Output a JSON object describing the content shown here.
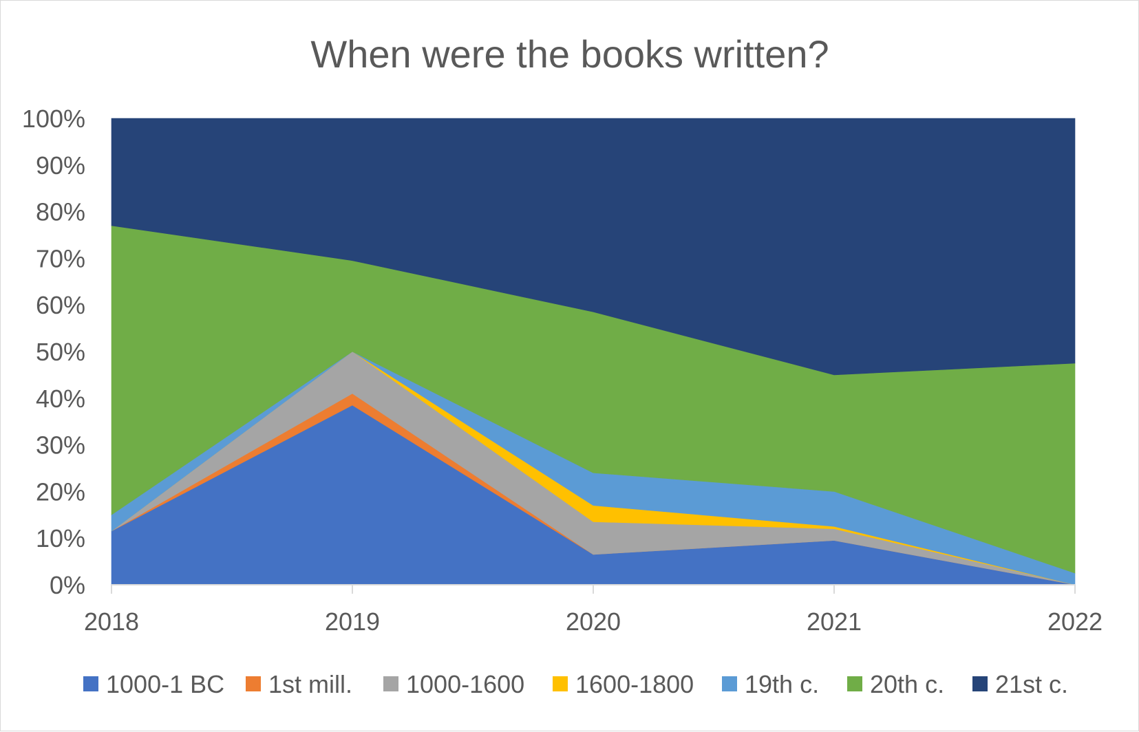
{
  "chart_data": {
    "type": "area",
    "stacked": "percent",
    "title": "When were the books written?",
    "xlabel": "",
    "ylabel": "",
    "categories": [
      "2018",
      "2019",
      "2020",
      "2021",
      "2022"
    ],
    "ylim": [
      0,
      100
    ],
    "y_ticks": [
      "0%",
      "10%",
      "20%",
      "30%",
      "40%",
      "50%",
      "60%",
      "70%",
      "80%",
      "90%",
      "100%"
    ],
    "grid": false,
    "legend_position": "bottom",
    "series": [
      {
        "name": "1000-1 BC",
        "color": "#4472C4",
        "values": [
          11.5,
          38.5,
          6.5,
          9.5,
          0
        ]
      },
      {
        "name": "1st mill.",
        "color": "#ED7D31",
        "values": [
          0,
          2.5,
          0,
          0,
          0
        ]
      },
      {
        "name": "1000-1600",
        "color": "#A5A5A5",
        "values": [
          0,
          9,
          7,
          2.5,
          0
        ]
      },
      {
        "name": "1600-1800",
        "color": "#FFC000",
        "values": [
          0,
          0,
          3.5,
          0.5,
          0
        ]
      },
      {
        "name": "19th c.",
        "color": "#5B9BD5",
        "values": [
          3.5,
          0,
          7,
          7.5,
          2.5
        ]
      },
      {
        "name": "20th c.",
        "color": "#70AD47",
        "values": [
          62,
          19.5,
          34.5,
          25,
          45
        ]
      },
      {
        "name": "21st c.",
        "color": "#264478",
        "values": [
          23,
          30.5,
          41.5,
          55,
          52.5
        ]
      }
    ]
  }
}
